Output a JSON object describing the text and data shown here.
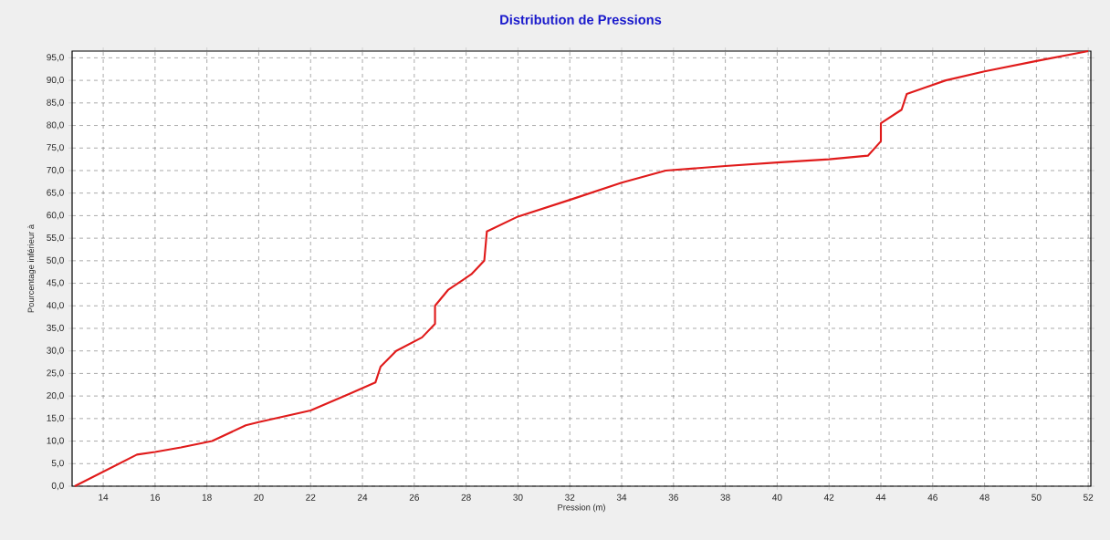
{
  "chart_data": {
    "type": "line",
    "title": "Distribution de Pressions",
    "xlabel": "Pression (m)",
    "ylabel": "Pourcentage inférieur à",
    "x": [
      12.9,
      15.3,
      16,
      17,
      18.2,
      19.5,
      20,
      22,
      23.5,
      24.5,
      24.7,
      25.3,
      26.3,
      26.8,
      26.8,
      27.3,
      28.2,
      28.7,
      28.8,
      30,
      32,
      34,
      35.7,
      38,
      40,
      42,
      43.5,
      44,
      44,
      44.8,
      45,
      46.5,
      48,
      50,
      52
    ],
    "series": [
      {
        "color": "#e01b1b",
        "values": [
          0,
          7,
          7.6,
          8.6,
          10,
          13.5,
          14.2,
          16.8,
          20.5,
          23,
          26.5,
          30,
          33,
          36,
          40,
          43.5,
          47,
          50,
          56.5,
          59.8,
          63.5,
          67.3,
          70,
          71,
          71.8,
          72.5,
          73.3,
          76.5,
          80.5,
          83.5,
          87,
          90,
          92,
          94.3,
          96.5
        ]
      }
    ],
    "xlim": [
      12.8,
      52.1
    ],
    "ylim": [
      0,
      96.5
    ],
    "xticks": [
      14,
      16,
      18,
      20,
      22,
      24,
      26,
      28,
      30,
      32,
      34,
      36,
      38,
      40,
      42,
      44,
      46,
      48,
      50,
      52
    ],
    "yticks": [
      {
        "value": 0,
        "label": "0,0"
      },
      {
        "value": 5,
        "label": "5,0"
      },
      {
        "value": 10,
        "label": "10,0"
      },
      {
        "value": 15,
        "label": "15,0"
      },
      {
        "value": 20,
        "label": "20,0"
      },
      {
        "value": 25,
        "label": "25,0"
      },
      {
        "value": 30,
        "label": "30,0"
      },
      {
        "value": 35,
        "label": "35,0"
      },
      {
        "value": 40,
        "label": "40,0"
      },
      {
        "value": 45,
        "label": "45,0"
      },
      {
        "value": 50,
        "label": "50,0"
      },
      {
        "value": 55,
        "label": "55,0"
      },
      {
        "value": 60,
        "label": "60,0"
      },
      {
        "value": 65,
        "label": "65,0"
      },
      {
        "value": 70,
        "label": "70,0"
      },
      {
        "value": 75,
        "label": "75,0"
      },
      {
        "value": 80,
        "label": "80,0"
      },
      {
        "value": 85,
        "label": "85,0"
      },
      {
        "value": 90,
        "label": "90,0"
      },
      {
        "value": 95,
        "label": "95,0"
      }
    ],
    "grid": true,
    "line_style": "solid"
  }
}
